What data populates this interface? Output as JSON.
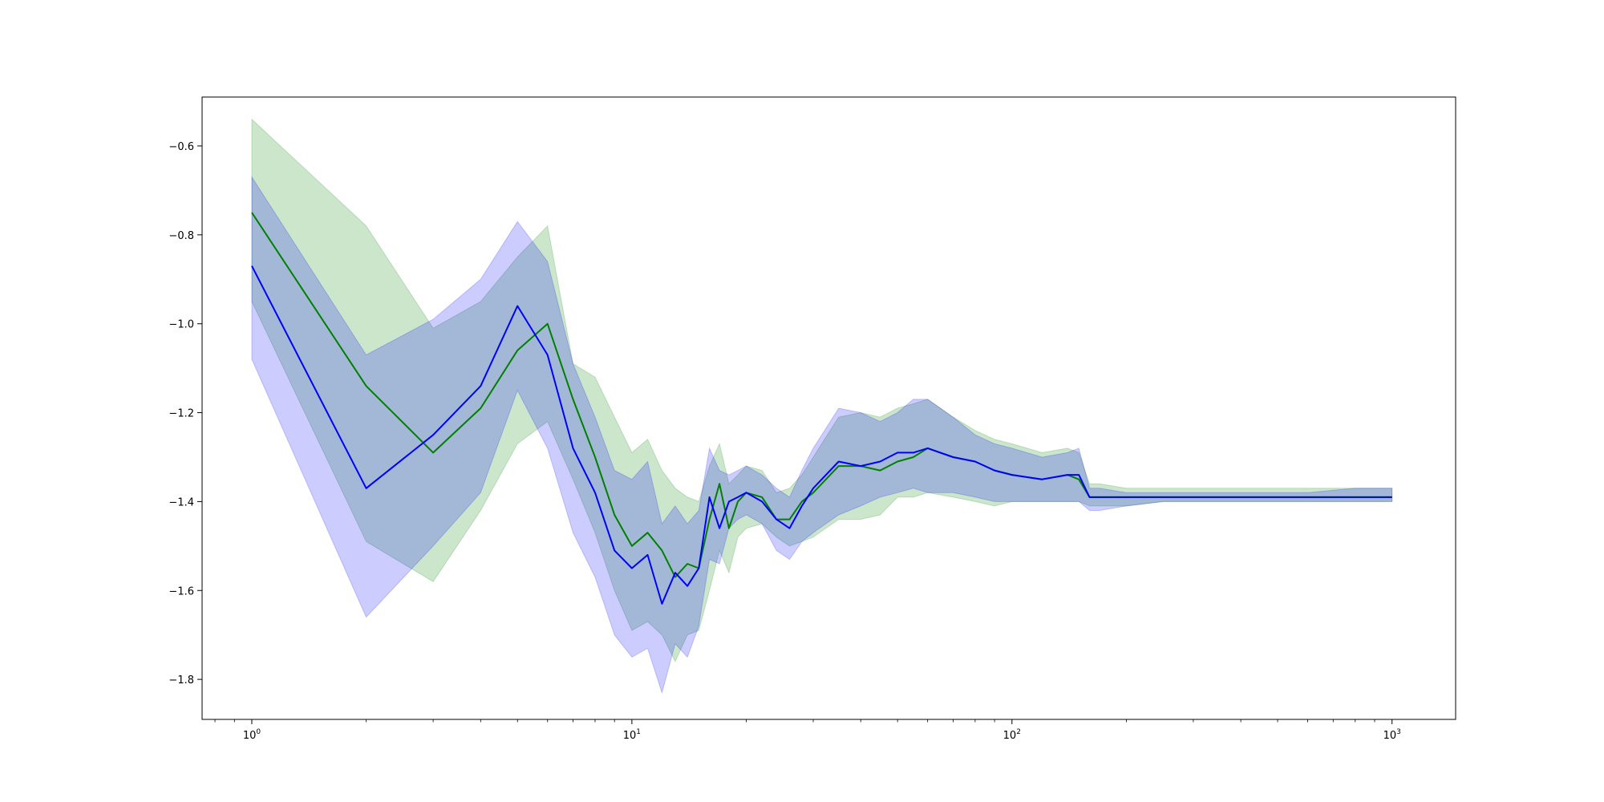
{
  "chart_data": {
    "type": "line",
    "xscale": "log",
    "xlim": [
      0.74,
      1470
    ],
    "ylim": [
      -1.89,
      -0.49
    ],
    "grid": false,
    "legend": "none",
    "xticks": [
      {
        "value": 1,
        "base": "10",
        "exp": "0"
      },
      {
        "value": 10,
        "base": "10",
        "exp": "1"
      },
      {
        "value": 100,
        "base": "10",
        "exp": "2"
      },
      {
        "value": 1000,
        "base": "10",
        "exp": "3"
      }
    ],
    "yticks": [
      {
        "value": -0.6,
        "label": "−0.6"
      },
      {
        "value": -0.8,
        "label": "−0.8"
      },
      {
        "value": -1.0,
        "label": "−1.0"
      },
      {
        "value": -1.2,
        "label": "−1.2"
      },
      {
        "value": -1.4,
        "label": "−1.4"
      },
      {
        "value": -1.6,
        "label": "−1.6"
      },
      {
        "value": -1.8,
        "label": "−1.8"
      }
    ],
    "series": [
      {
        "color": "#008000",
        "band_color": "#008000",
        "band_opacity": 0.2,
        "x": [
          1,
          2,
          3,
          4,
          5,
          6,
          7,
          8,
          9,
          10,
          11,
          12,
          13,
          14,
          15,
          16,
          17,
          18,
          19,
          20,
          22,
          24,
          26,
          28,
          30,
          35,
          40,
          45,
          50,
          55,
          60,
          70,
          80,
          90,
          100,
          120,
          140,
          150,
          160,
          170,
          200,
          250,
          300,
          400,
          500,
          600,
          800,
          1000
        ],
        "y": [
          -0.75,
          -1.14,
          -1.29,
          -1.19,
          -1.06,
          -1.0,
          -1.17,
          -1.3,
          -1.43,
          -1.5,
          -1.47,
          -1.51,
          -1.57,
          -1.54,
          -1.55,
          -1.44,
          -1.36,
          -1.46,
          -1.4,
          -1.38,
          -1.39,
          -1.44,
          -1.44,
          -1.4,
          -1.38,
          -1.32,
          -1.32,
          -1.33,
          -1.31,
          -1.3,
          -1.28,
          -1.3,
          -1.31,
          -1.33,
          -1.34,
          -1.35,
          -1.34,
          -1.35,
          -1.39,
          -1.39,
          -1.39,
          -1.39,
          -1.39,
          -1.39,
          -1.39,
          -1.39,
          -1.39,
          -1.39
        ],
        "lower": [
          -0.95,
          -1.49,
          -1.58,
          -1.42,
          -1.27,
          -1.22,
          -1.35,
          -1.47,
          -1.6,
          -1.69,
          -1.67,
          -1.7,
          -1.76,
          -1.7,
          -1.69,
          -1.6,
          -1.51,
          -1.56,
          -1.48,
          -1.46,
          -1.45,
          -1.48,
          -1.5,
          -1.49,
          -1.48,
          -1.44,
          -1.44,
          -1.43,
          -1.39,
          -1.39,
          -1.38,
          -1.39,
          -1.4,
          -1.41,
          -1.4,
          -1.4,
          -1.4,
          -1.4,
          -1.41,
          -1.41,
          -1.41,
          -1.4,
          -1.4,
          -1.4,
          -1.4,
          -1.4,
          -1.4,
          -1.4
        ],
        "upper": [
          -0.54,
          -0.78,
          -1.01,
          -0.95,
          -0.85,
          -0.78,
          -1.09,
          -1.12,
          -1.21,
          -1.29,
          -1.26,
          -1.33,
          -1.37,
          -1.39,
          -1.4,
          -1.32,
          -1.27,
          -1.36,
          -1.34,
          -1.32,
          -1.33,
          -1.38,
          -1.37,
          -1.34,
          -1.3,
          -1.21,
          -1.2,
          -1.21,
          -1.19,
          -1.18,
          -1.17,
          -1.21,
          -1.24,
          -1.26,
          -1.27,
          -1.29,
          -1.28,
          -1.29,
          -1.36,
          -1.36,
          -1.37,
          -1.37,
          -1.37,
          -1.37,
          -1.37,
          -1.37,
          -1.37,
          -1.37
        ]
      },
      {
        "color": "#0000ff",
        "band_color": "#0000ff",
        "band_opacity": 0.2,
        "x": [
          1,
          2,
          3,
          4,
          5,
          6,
          7,
          8,
          9,
          10,
          11,
          12,
          13,
          14,
          15,
          16,
          17,
          18,
          19,
          20,
          22,
          24,
          26,
          28,
          30,
          35,
          40,
          45,
          50,
          55,
          60,
          70,
          80,
          90,
          100,
          120,
          140,
          150,
          160,
          170,
          200,
          250,
          300,
          400,
          500,
          600,
          800,
          1000
        ],
        "y": [
          -0.87,
          -1.37,
          -1.25,
          -1.14,
          -0.96,
          -1.07,
          -1.28,
          -1.38,
          -1.51,
          -1.55,
          -1.52,
          -1.63,
          -1.56,
          -1.59,
          -1.55,
          -1.39,
          -1.46,
          -1.4,
          -1.39,
          -1.38,
          -1.4,
          -1.44,
          -1.46,
          -1.41,
          -1.37,
          -1.31,
          -1.32,
          -1.31,
          -1.29,
          -1.29,
          -1.28,
          -1.3,
          -1.31,
          -1.33,
          -1.34,
          -1.35,
          -1.34,
          -1.34,
          -1.39,
          -1.39,
          -1.39,
          -1.39,
          -1.39,
          -1.39,
          -1.39,
          -1.39,
          -1.39,
          -1.39
        ],
        "lower": [
          -1.08,
          -1.66,
          -1.5,
          -1.38,
          -1.15,
          -1.28,
          -1.47,
          -1.57,
          -1.7,
          -1.75,
          -1.73,
          -1.83,
          -1.72,
          -1.75,
          -1.68,
          -1.53,
          -1.54,
          -1.46,
          -1.44,
          -1.43,
          -1.45,
          -1.51,
          -1.53,
          -1.49,
          -1.47,
          -1.43,
          -1.41,
          -1.39,
          -1.38,
          -1.37,
          -1.38,
          -1.38,
          -1.39,
          -1.4,
          -1.4,
          -1.4,
          -1.4,
          -1.4,
          -1.42,
          -1.42,
          -1.41,
          -1.4,
          -1.4,
          -1.4,
          -1.4,
          -1.4,
          -1.4,
          -1.4
        ],
        "upper": [
          -0.67,
          -1.07,
          -0.99,
          -0.9,
          -0.77,
          -0.86,
          -1.09,
          -1.21,
          -1.33,
          -1.35,
          -1.31,
          -1.45,
          -1.41,
          -1.45,
          -1.42,
          -1.28,
          -1.33,
          -1.34,
          -1.33,
          -1.32,
          -1.34,
          -1.37,
          -1.39,
          -1.33,
          -1.28,
          -1.19,
          -1.2,
          -1.22,
          -1.2,
          -1.17,
          -1.17,
          -1.21,
          -1.25,
          -1.27,
          -1.28,
          -1.3,
          -1.29,
          -1.28,
          -1.37,
          -1.37,
          -1.38,
          -1.38,
          -1.38,
          -1.38,
          -1.38,
          -1.38,
          -1.37,
          -1.37
        ]
      }
    ]
  }
}
